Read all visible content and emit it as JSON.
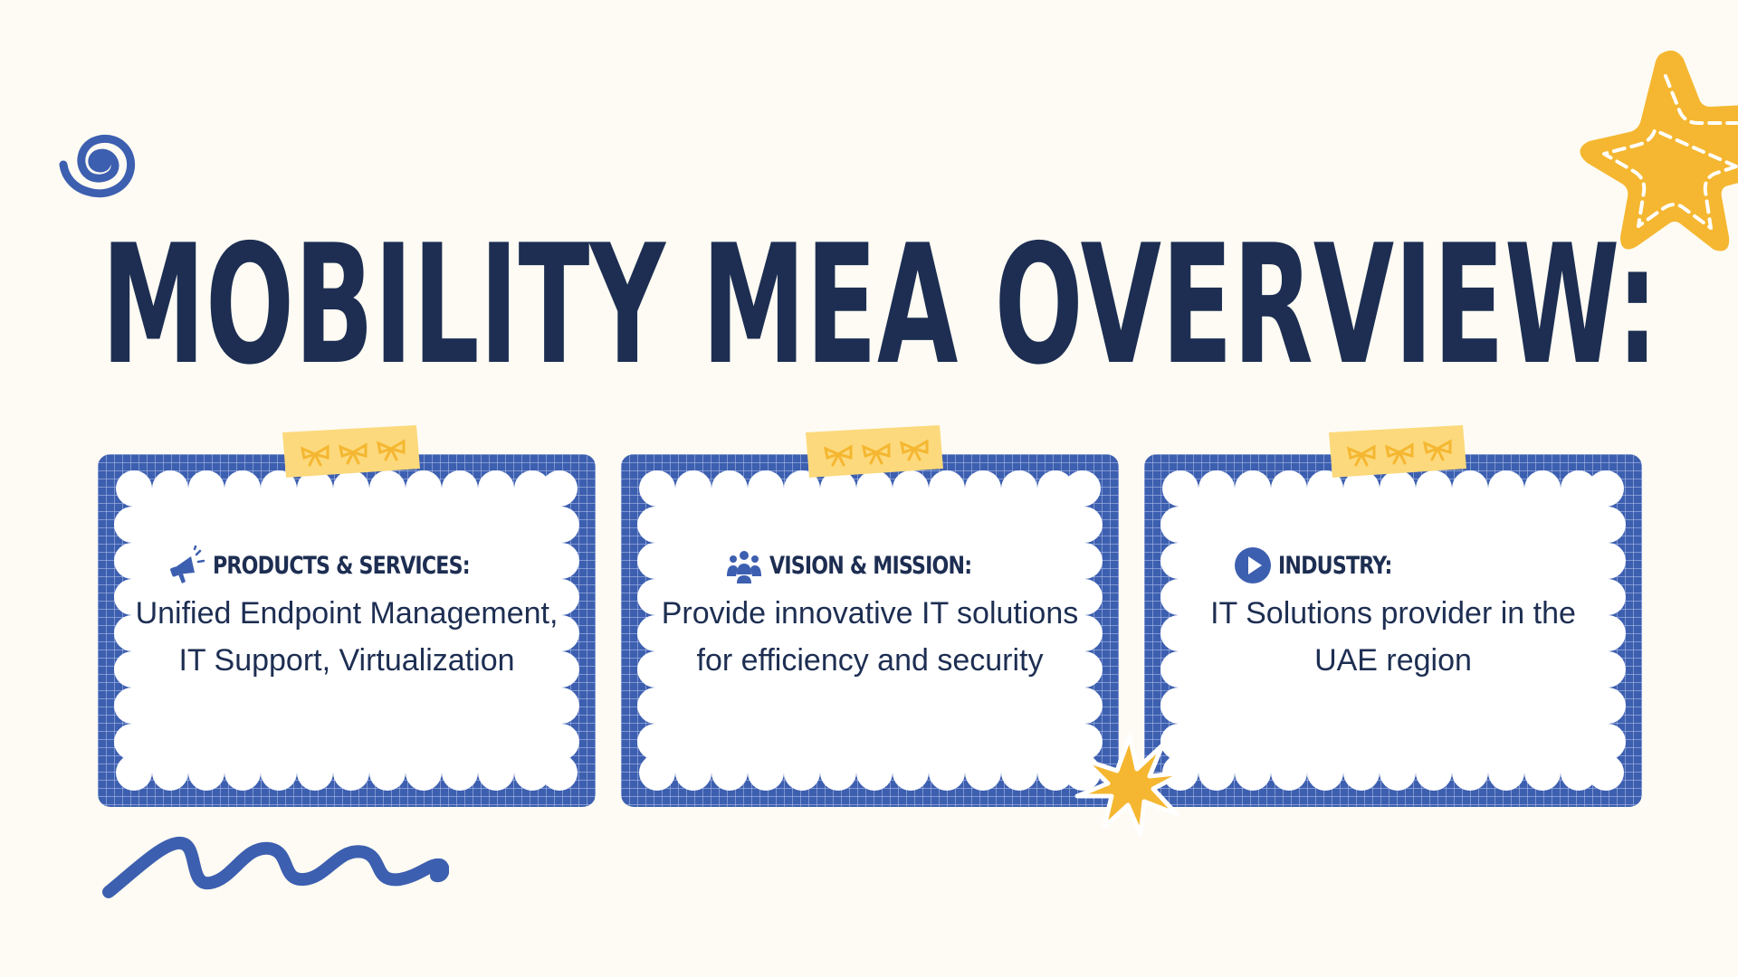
{
  "title": "MOBILITY MEA OVERVIEW:",
  "colors": {
    "background": "#fdfbf3",
    "navy": "#1d2e52",
    "blue": "#3d5fb0",
    "yellow": "#f5b731",
    "tape": "#fcd97c"
  },
  "cards": [
    {
      "icon": "megaphone-icon",
      "heading": "PRODUCTS & SERVICES:",
      "body": "Unified Endpoint Management, IT Support, Virtualization"
    },
    {
      "icon": "people-icon",
      "heading": "VISION & MISSION:",
      "body": "Provide innovative IT solutions for efficiency and security"
    },
    {
      "icon": "play-icon",
      "heading": "INDUSTRY:",
      "body": "IT Solutions provider in the UAE region"
    }
  ],
  "decorations": [
    "spiral-icon",
    "star-icon",
    "sparkle-icon",
    "squiggle-icon",
    "bow-icon"
  ]
}
